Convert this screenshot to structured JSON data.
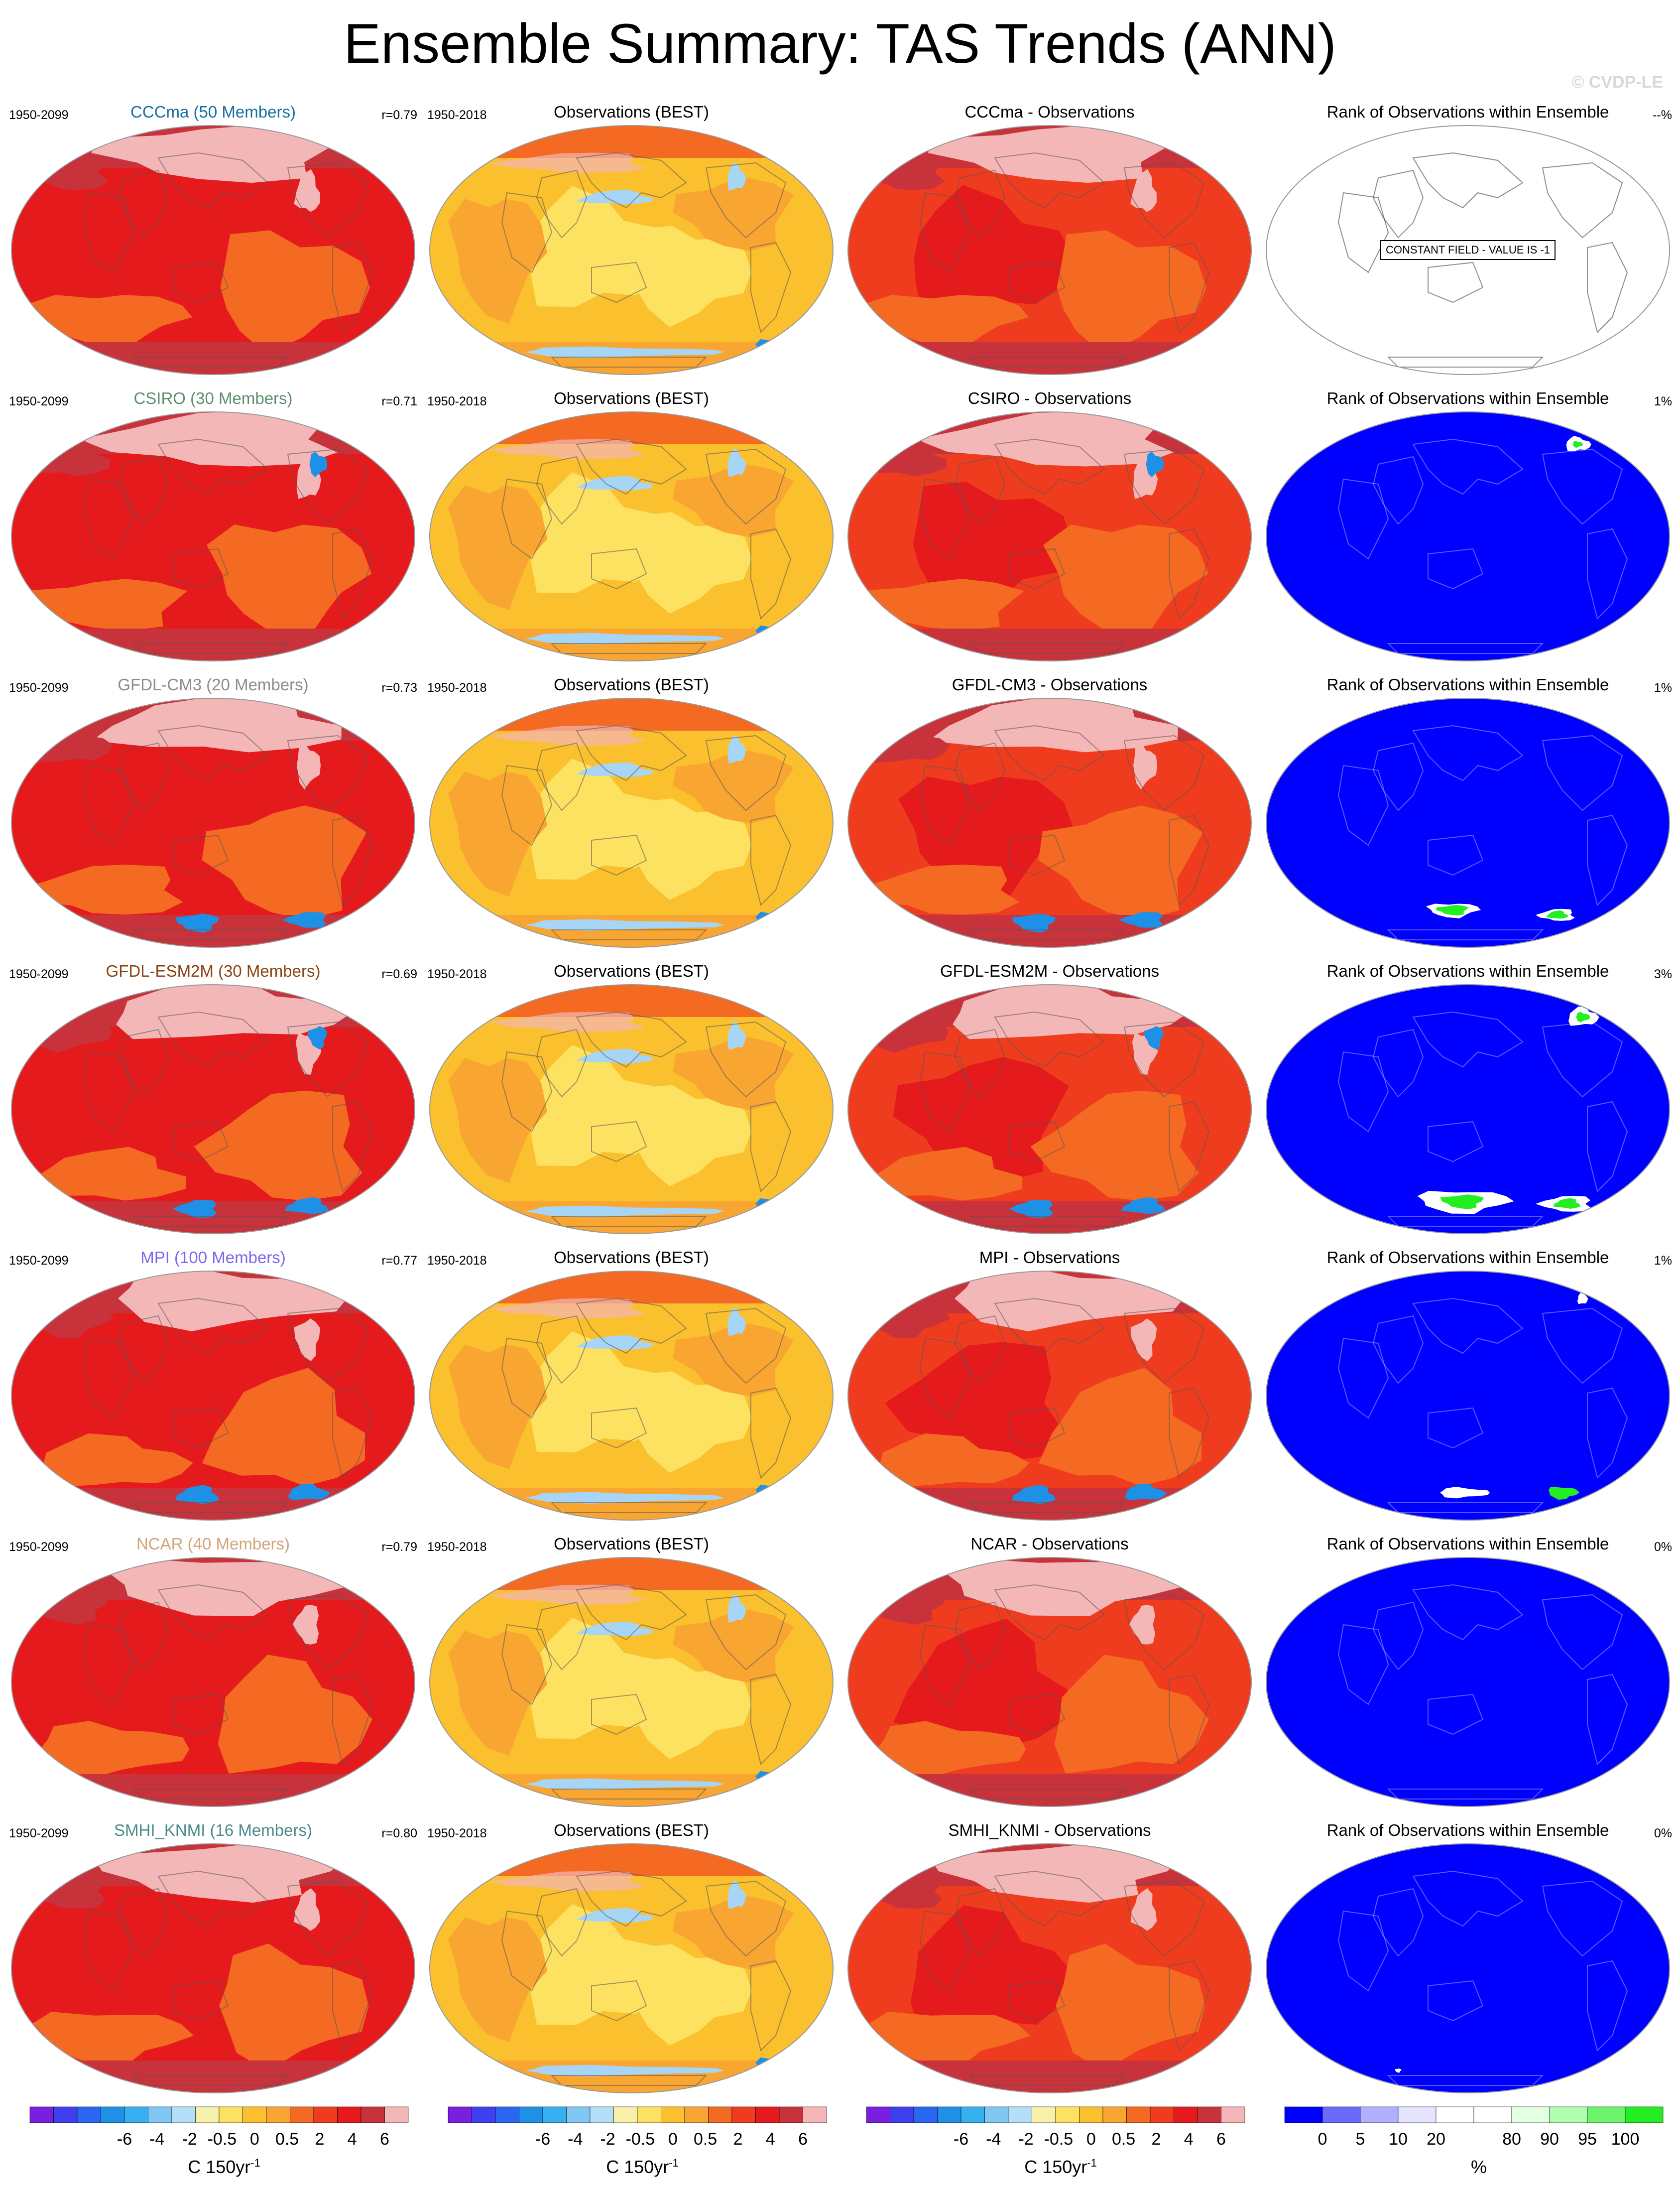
{
  "title": "Ensemble Summary: TAS Trends (ANN)",
  "watermark": "© CVDP-LE",
  "colors": {
    "deep_red": "#c8323a",
    "red": "#e41a1c",
    "red_orange": "#f03c1e",
    "orange_red": "#f56a22",
    "orange": "#f9a531",
    "amber": "#fbc02d",
    "yellow": "#fde262",
    "pale_yellow": "#fdf0a0",
    "pink": "#f4b7b7",
    "light_blue": "#a6d5f6",
    "blue": "#1e90e6",
    "rank_blue": "#0000ff",
    "rank_green": "#22ee22"
  },
  "rows": [
    {
      "model_title": "CCCma (50 Members)",
      "model_color": "#1a6fa3",
      "model_period": "1950-2099",
      "model_r": "r=0.79",
      "obs_title": "Observations (BEST)",
      "obs_period": "1950-2018",
      "diff_title": "CCCma - Observations",
      "rank_title": "Rank of Observations within Ensemble",
      "rank_pct": "--%",
      "rank_constant": "CONSTANT FIELD - VALUE IS -1"
    },
    {
      "model_title": "CSIRO (30 Members)",
      "model_color": "#5e8d6e",
      "model_period": "1950-2099",
      "model_r": "r=0.71",
      "obs_title": "Observations (BEST)",
      "obs_period": "1950-2018",
      "diff_title": "CSIRO - Observations",
      "rank_title": "Rank of Observations within Ensemble",
      "rank_pct": "1%"
    },
    {
      "model_title": "GFDL-CM3 (20 Members)",
      "model_color": "#8c8c8c",
      "model_period": "1950-2099",
      "model_r": "r=0.73",
      "obs_title": "Observations (BEST)",
      "obs_period": "1950-2018",
      "diff_title": "GFDL-CM3 - Observations",
      "rank_title": "Rank of Observations within Ensemble",
      "rank_pct": "1%"
    },
    {
      "model_title": "GFDL-ESM2M (30 Members)",
      "model_color": "#8b4513",
      "model_period": "1950-2099",
      "model_r": "r=0.69",
      "obs_title": "Observations (BEST)",
      "obs_period": "1950-2018",
      "diff_title": "GFDL-ESM2M - Observations",
      "rank_title": "Rank of Observations within Ensemble",
      "rank_pct": "3%"
    },
    {
      "model_title": "MPI (100 Members)",
      "model_color": "#7b68ee",
      "model_period": "1950-2099",
      "model_r": "r=0.77",
      "obs_title": "Observations (BEST)",
      "obs_period": "1950-2018",
      "diff_title": "MPI - Observations",
      "rank_title": "Rank of Observations within Ensemble",
      "rank_pct": "1%"
    },
    {
      "model_title": "NCAR (40 Members)",
      "model_color": "#d2a679",
      "model_period": "1950-2099",
      "model_r": "r=0.79",
      "obs_title": "Observations (BEST)",
      "obs_period": "1950-2018",
      "diff_title": "NCAR - Observations",
      "rank_title": "Rank of Observations within Ensemble",
      "rank_pct": "0%"
    },
    {
      "model_title": "SMHI_KNMI (16 Members)",
      "model_color": "#4a8a8a",
      "model_period": "1950-2099",
      "model_r": "r=0.80",
      "obs_title": "Observations (BEST)",
      "obs_period": "1950-2018",
      "diff_title": "SMHI_KNMI - Observations",
      "rank_title": "Rank of Observations within Ensemble",
      "rank_pct": "0%"
    }
  ],
  "colorbars": {
    "trend": {
      "colors": [
        "#7a1fe0",
        "#3f3ff0",
        "#2a66f2",
        "#1e90e6",
        "#36b0f0",
        "#7fc8f4",
        "#b5dff8",
        "#f6f0a8",
        "#fde262",
        "#fbc02d",
        "#f9a531",
        "#f56a22",
        "#f03c1e",
        "#e41a1c",
        "#c8323a",
        "#f4b7b7"
      ],
      "labels": [
        "-6",
        "-4",
        "-2",
        "-0.5",
        "0",
        "0.5",
        "2",
        "4",
        "6"
      ],
      "units": "C 150yr",
      "units_sup": "-1"
    },
    "rank": {
      "colors": [
        "#0000ff",
        "#6a6aff",
        "#b0b0ff",
        "#e4e4ff",
        "#ffffff",
        "#ffffff",
        "#e4ffe4",
        "#b0ffb0",
        "#6af56a",
        "#22ee22"
      ],
      "labels": [
        "0",
        "5",
        "10",
        "20",
        "80",
        "90",
        "95",
        "100"
      ],
      "units": "%"
    }
  }
}
